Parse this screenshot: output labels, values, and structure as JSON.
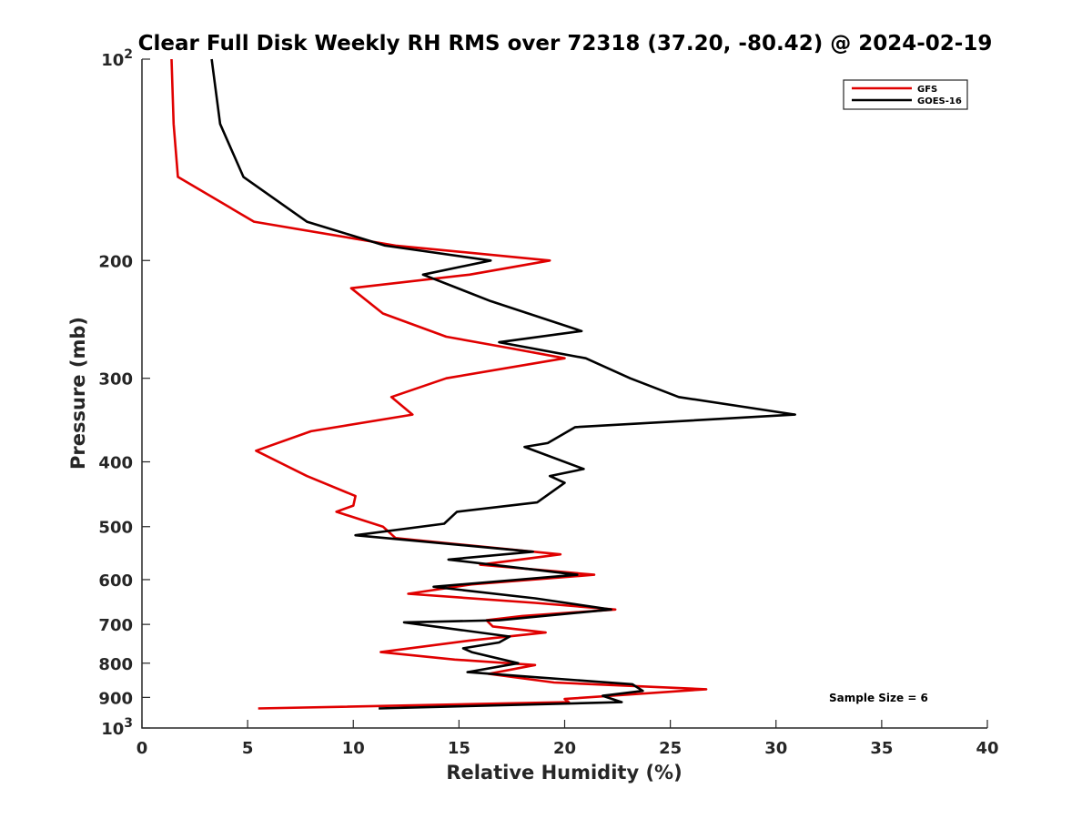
{
  "chart_data": {
    "type": "line",
    "title": "Clear Full Disk Weekly RH RMS over 72318 (37.20, -80.42) @ 2024-02-19",
    "xlabel": "Relative Humidity (%)",
    "ylabel": "Pressure (mb)",
    "xlim": [
      0,
      40
    ],
    "ylim": [
      100,
      1000
    ],
    "yscale": "log",
    "y_reversed": true,
    "x_ticks": [
      "0",
      "5",
      "10",
      "15",
      "20",
      "25",
      "30",
      "35",
      "40"
    ],
    "y_ticks": [
      {
        "value": 100,
        "base": "10",
        "exp": "2"
      },
      {
        "value": 200,
        "label": "200"
      },
      {
        "value": 300,
        "label": "300"
      },
      {
        "value": 400,
        "label": "400"
      },
      {
        "value": 500,
        "label": "500"
      },
      {
        "value": 600,
        "label": "600"
      },
      {
        "value": 700,
        "label": "700"
      },
      {
        "value": 800,
        "label": "800"
      },
      {
        "value": 900,
        "label": "900"
      },
      {
        "value": 1000,
        "base": "10",
        "exp": "3"
      }
    ],
    "grid": false,
    "legend_position": "top-right",
    "annotation": "Sample Size = 6",
    "series": [
      {
        "name": "GFS",
        "color": "#e00000",
        "points": [
          [
            1.4,
            100
          ],
          [
            1.5,
            125
          ],
          [
            1.7,
            150
          ],
          [
            5.3,
            175
          ],
          [
            12.0,
            190
          ],
          [
            19.3,
            200
          ],
          [
            15.5,
            210
          ],
          [
            9.9,
            220
          ],
          [
            11.4,
            240
          ],
          [
            14.4,
            260
          ],
          [
            17.3,
            270
          ],
          [
            20.0,
            280
          ],
          [
            14.4,
            300
          ],
          [
            11.8,
            320
          ],
          [
            12.8,
            340
          ],
          [
            8.0,
            360
          ],
          [
            5.4,
            385
          ],
          [
            7.8,
            420
          ],
          [
            10.1,
            450
          ],
          [
            10.0,
            465
          ],
          [
            9.2,
            475
          ],
          [
            11.4,
            500
          ],
          [
            12.0,
            520
          ],
          [
            19.8,
            550
          ],
          [
            16.0,
            570
          ],
          [
            21.4,
            590
          ],
          [
            15.6,
            610
          ],
          [
            12.6,
            630
          ],
          [
            18.6,
            650
          ],
          [
            22.4,
            665
          ],
          [
            18.0,
            680
          ],
          [
            16.3,
            690
          ],
          [
            16.6,
            705
          ],
          [
            19.1,
            720
          ],
          [
            15.5,
            740
          ],
          [
            11.3,
            770
          ],
          [
            14.8,
            790
          ],
          [
            18.6,
            805
          ],
          [
            16.4,
            830
          ],
          [
            19.5,
            855
          ],
          [
            26.7,
            875
          ],
          [
            20.0,
            905
          ],
          [
            20.2,
            915
          ],
          [
            5.5,
            935
          ]
        ]
      },
      {
        "name": "GOES-16",
        "color": "#000000",
        "points": [
          [
            3.3,
            100
          ],
          [
            3.7,
            125
          ],
          [
            4.8,
            150
          ],
          [
            7.8,
            175
          ],
          [
            11.5,
            190
          ],
          [
            16.5,
            200
          ],
          [
            13.3,
            210
          ],
          [
            16.5,
            230
          ],
          [
            20.8,
            255
          ],
          [
            16.9,
            265
          ],
          [
            21.0,
            280
          ],
          [
            23.1,
            300
          ],
          [
            25.4,
            320
          ],
          [
            30.9,
            340
          ],
          [
            20.5,
            355
          ],
          [
            19.2,
            375
          ],
          [
            18.1,
            380
          ],
          [
            20.9,
            410
          ],
          [
            19.3,
            420
          ],
          [
            20.0,
            430
          ],
          [
            18.7,
            460
          ],
          [
            14.9,
            475
          ],
          [
            14.3,
            495
          ],
          [
            10.1,
            515
          ],
          [
            18.5,
            545
          ],
          [
            14.5,
            560
          ],
          [
            20.6,
            590
          ],
          [
            13.8,
            615
          ],
          [
            18.6,
            640
          ],
          [
            22.2,
            665
          ],
          [
            16.9,
            690
          ],
          [
            12.4,
            695
          ],
          [
            17.4,
            730
          ],
          [
            16.9,
            745
          ],
          [
            15.2,
            760
          ],
          [
            15.6,
            770
          ],
          [
            17.8,
            800
          ],
          [
            15.4,
            825
          ],
          [
            18.7,
            840
          ],
          [
            23.2,
            860
          ],
          [
            23.7,
            880
          ],
          [
            21.8,
            895
          ],
          [
            22.7,
            915
          ],
          [
            11.2,
            935
          ]
        ]
      }
    ]
  }
}
